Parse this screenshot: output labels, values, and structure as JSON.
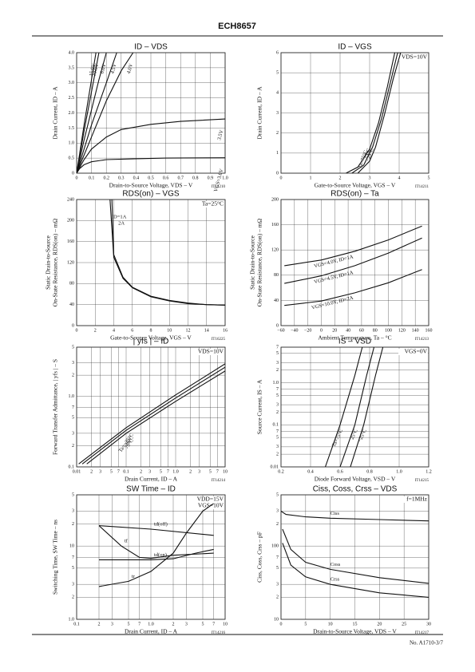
{
  "header": {
    "title": "ECH8657"
  },
  "footer": {
    "text": "No. A1710-3/7"
  },
  "chart_data": [
    {
      "type": "line",
      "title": "ID – VDS",
      "xlabel": "Drain-to-Source Voltage, VDS – V",
      "ylabel": [
        "Drain Current, ID – A"
      ],
      "note": "IT14210",
      "xlim": [
        0,
        1
      ],
      "xticks": [
        0,
        0.1,
        0.2,
        0.3,
        0.4,
        0.5,
        0.6,
        0.7,
        0.8,
        0.9,
        {
          "value": 1,
          "label": "1.0"
        }
      ],
      "ylim": [
        0,
        4
      ],
      "yticks": [
        0,
        0.5,
        {
          "value": 1,
          "label": "1.0"
        },
        1.5,
        {
          "value": 2,
          "label": "2.0"
        },
        2.5,
        {
          "value": 3,
          "label": "3.0"
        },
        3.5,
        {
          "value": 4,
          "label": "4.0"
        }
      ],
      "grid": true,
      "conditions": [],
      "series": [
        {
          "name": "15.0V",
          "color": "#111",
          "x": [
            0,
            0.05,
            0.1,
            0.13
          ],
          "values": [
            0,
            1.6,
            3.1,
            4.0
          ]
        },
        {
          "name": "10.0V",
          "color": "#111",
          "x": [
            0,
            0.05,
            0.1,
            0.15
          ],
          "values": [
            0,
            1.4,
            2.7,
            4.0
          ]
        },
        {
          "name": "6.0V",
          "color": "#111",
          "x": [
            0,
            0.05,
            0.1,
            0.15,
            0.2
          ],
          "values": [
            0,
            1.1,
            2.1,
            3.1,
            4.0
          ]
        },
        {
          "name": "4.5V",
          "color": "#111",
          "x": [
            0,
            0.05,
            0.1,
            0.15,
            0.2,
            0.27
          ],
          "values": [
            0,
            0.8,
            1.6,
            2.3,
            3.0,
            4.0
          ]
        },
        {
          "name": "4.0V",
          "color": "#111",
          "x": [
            0,
            0.1,
            0.2,
            0.3,
            0.38
          ],
          "values": [
            0,
            1.2,
            2.4,
            3.4,
            4.0
          ]
        },
        {
          "name": "3.5V",
          "color": "#111",
          "x": [
            0,
            0.05,
            0.1,
            0.2,
            0.3,
            0.5,
            0.7,
            1.0
          ],
          "values": [
            0,
            0.45,
            0.8,
            1.2,
            1.45,
            1.62,
            1.72,
            1.8
          ]
        },
        {
          "name": "VGS=3.0V",
          "color": "#111",
          "x": [
            0,
            0.02,
            0.05,
            0.1,
            0.2,
            0.4,
            0.6,
            1.0
          ],
          "values": [
            0,
            0.15,
            0.28,
            0.38,
            0.45,
            0.48,
            0.5,
            0.51
          ]
        }
      ]
    },
    {
      "type": "line",
      "title": "ID – VGS",
      "xlabel": "Gate-to-Source Voltage, VGS – V",
      "ylabel": [
        "Drain Current, ID – A"
      ],
      "note": "IT14211",
      "xlim": [
        0,
        5
      ],
      "xticks": [
        0,
        1,
        2,
        3,
        4,
        5
      ],
      "ylim": [
        0,
        6
      ],
      "yticks": [
        0,
        1,
        2,
        3,
        4,
        5,
        6
      ],
      "grid": true,
      "conditions": [
        "VDS=10V"
      ],
      "series": [
        {
          "name": "Ta=75°C",
          "color": "#111",
          "x": [
            2.2,
            2.6,
            3.0,
            3.3,
            3.6,
            3.85
          ],
          "values": [
            0,
            0.3,
            1.2,
            2.5,
            4.3,
            6
          ]
        },
        {
          "name": "25°C",
          "color": "#111",
          "x": [
            2.4,
            2.8,
            3.1,
            3.4,
            3.7,
            3.95
          ],
          "values": [
            0,
            0.4,
            1.3,
            2.7,
            4.5,
            6
          ]
        },
        {
          "name": "−25°C",
          "color": "#111",
          "x": [
            2.6,
            3.0,
            3.2,
            3.5,
            3.8,
            4.05
          ],
          "values": [
            0,
            0.6,
            1.3,
            2.9,
            4.7,
            6
          ]
        }
      ]
    },
    {
      "type": "line",
      "title": "RDS(on) – VGS",
      "xlabel": "Gate-to-Source Voltage, VGS – V",
      "ylabel": [
        "Static Drain-to-Source",
        "On-State Resistance, RDS(on) – mΩ"
      ],
      "note": "IT16225",
      "xlim": [
        0,
        16
      ],
      "xticks": [
        0,
        2,
        4,
        6,
        8,
        10,
        12,
        14,
        16
      ],
      "ylim": [
        0,
        240
      ],
      "yticks": [
        0,
        40,
        80,
        120,
        160,
        200,
        240
      ],
      "grid": true,
      "conditions": [
        "Ta=25°C"
      ],
      "series": [
        {
          "name": "ID=1A",
          "color": "#111",
          "x": [
            3.6,
            4,
            5,
            6,
            8,
            10,
            12,
            14,
            16
          ],
          "values": [
            240,
            130,
            90,
            72,
            55,
            47,
            42,
            40,
            39
          ]
        },
        {
          "name": "2A",
          "color": "#111",
          "x": [
            3.8,
            4,
            5,
            6,
            8,
            10,
            12,
            14,
            16
          ],
          "values": [
            240,
            135,
            92,
            73,
            56,
            48,
            43,
            40,
            39
          ]
        }
      ]
    },
    {
      "type": "line",
      "title": "RDS(on) – Ta",
      "xlabel": "Ambient Temperature, Ta – °C",
      "ylabel": [
        "Static Drain-to-Source",
        "On-State Resistance, RDS(on) – mΩ"
      ],
      "note": "IT14213",
      "xlim": [
        -60,
        160
      ],
      "xticks": [
        {
          "value": -60,
          "label": "−60"
        },
        {
          "value": -40,
          "label": "−40"
        },
        {
          "value": -20,
          "label": "−20"
        },
        0,
        20,
        40,
        60,
        80,
        100,
        120,
        140,
        160
      ],
      "ylim": [
        0,
        200
      ],
      "yticks": [
        0,
        40,
        80,
        120,
        160,
        200
      ],
      "grid": true,
      "conditions": [],
      "series": [
        {
          "name": "VGS=4.0V, ID=1A",
          "color": "#111",
          "x": [
            -55,
            0,
            50,
            100,
            150
          ],
          "values": [
            95,
            104,
            118,
            136,
            158
          ]
        },
        {
          "name": "VGS=4.5V, ID=1A",
          "color": "#111",
          "x": [
            -55,
            0,
            50,
            100,
            150
          ],
          "values": [
            67,
            79,
            95,
            115,
            139
          ]
        },
        {
          "name": "VGS=10.0V, ID=2A",
          "color": "#111",
          "x": [
            -55,
            0,
            50,
            100,
            150
          ],
          "values": [
            32,
            39,
            52,
            68,
            89
          ]
        }
      ]
    },
    {
      "type": "line",
      "title": "| yfs | – ID",
      "xlabel": "Drain Current, ID – A",
      "ylabel": [
        "Forward Transfer Admittance, | yfs | – S"
      ],
      "note": "IT14214",
      "xlog": true,
      "ylog": true,
      "xlim": [
        0.01,
        10
      ],
      "xticks": [
        0.01,
        {
          "value": 0.02,
          "label": "2"
        },
        {
          "value": 0.03,
          "label": "3"
        },
        {
          "value": 0.05,
          "label": "5"
        },
        {
          "value": 0.07,
          "label": "7"
        },
        0.1,
        {
          "value": 0.2,
          "label": "2"
        },
        {
          "value": 0.3,
          "label": "3"
        },
        {
          "value": 0.5,
          "label": "5"
        },
        {
          "value": 0.7,
          "label": "7"
        },
        {
          "value": 1,
          "label": "1.0"
        },
        2,
        3,
        5,
        7,
        10
      ],
      "ylim": [
        0.1,
        5
      ],
      "yticks": [
        0.1,
        {
          "value": 0.2,
          "label": "2"
        },
        {
          "value": 0.3,
          "label": "3"
        },
        {
          "value": 0.5,
          "label": "5"
        },
        {
          "value": 0.7,
          "label": "7"
        },
        {
          "value": 1,
          "label": "1.0"
        },
        2,
        3,
        5
      ],
      "grid": true,
      "conditions": [
        "VDS=10V"
      ],
      "series": [
        {
          "name": "Ta=−25°C",
          "color": "#111",
          "x": [
            0.011,
            0.1,
            1,
            10
          ],
          "values": [
            0.11,
            0.36,
            1.05,
            2.9
          ]
        },
        {
          "name": "25°C",
          "color": "#111",
          "x": [
            0.013,
            0.1,
            1,
            10
          ],
          "values": [
            0.11,
            0.33,
            0.95,
            2.6
          ]
        },
        {
          "name": "75°C",
          "color": "#111",
          "x": [
            0.016,
            0.1,
            1,
            10
          ],
          "values": [
            0.11,
            0.3,
            0.85,
            2.3
          ]
        }
      ]
    },
    {
      "type": "line",
      "title": "IS – VSD",
      "xlabel": "Diode Forward Voltage, VSD – V",
      "ylabel": [
        "Source Current, IS – A"
      ],
      "note": "IT14215",
      "ylog": true,
      "xlim": [
        0.2,
        1.2
      ],
      "xticks": [
        0.2,
        0.4,
        0.6,
        0.8,
        {
          "value": 1,
          "label": "1.0"
        },
        1.2
      ],
      "ylim": [
        0.01,
        7
      ],
      "yticks": [
        0.01,
        {
          "value": 0.02,
          "label": "2"
        },
        {
          "value": 0.03,
          "label": "3"
        },
        {
          "value": 0.05,
          "label": "5"
        },
        {
          "value": 0.07,
          "label": "7"
        },
        0.1,
        {
          "value": 0.2,
          "label": "2"
        },
        {
          "value": 0.3,
          "label": "3"
        },
        {
          "value": 0.5,
          "label": "5"
        },
        {
          "value": 0.7,
          "label": "7"
        },
        {
          "value": 1,
          "label": "1.0"
        },
        2,
        3,
        5,
        7
      ],
      "grid": true,
      "conditions": [
        "VGS=0V"
      ],
      "series": [
        {
          "name": "Ta=75°C",
          "color": "#111",
          "x": [
            0.5,
            0.6,
            0.7,
            0.75
          ],
          "values": [
            0.01,
            0.1,
            1.5,
            7
          ]
        },
        {
          "name": "25°C",
          "color": "#111",
          "x": [
            0.6,
            0.7,
            0.78,
            0.83
          ],
          "values": [
            0.01,
            0.1,
            1.5,
            7
          ]
        },
        {
          "name": "−25°C",
          "color": "#111",
          "x": [
            0.67,
            0.76,
            0.84,
            0.89
          ],
          "values": [
            0.01,
            0.1,
            1.5,
            7
          ]
        }
      ]
    },
    {
      "type": "line",
      "title": "SW Time – ID",
      "xlabel": "Drain Current, ID – A",
      "ylabel": [
        "Switching Time, SW Time – ns"
      ],
      "note": "IT14216",
      "xlog": true,
      "ylog": true,
      "xlim": [
        0.1,
        10
      ],
      "xticks": [
        0.1,
        {
          "value": 0.2,
          "label": "2"
        },
        {
          "value": 0.3,
          "label": "3"
        },
        {
          "value": 0.5,
          "label": "5"
        },
        {
          "value": 0.7,
          "label": "7"
        },
        {
          "value": 1,
          "label": "1.0"
        },
        2,
        3,
        5,
        7,
        10
      ],
      "ylim": [
        1,
        50
      ],
      "yticks": [
        {
          "value": 1,
          "label": "1.0"
        },
        2,
        3,
        5,
        7,
        10,
        {
          "value": 20,
          "label": "2"
        },
        {
          "value": 30,
          "label": "3"
        },
        {
          "value": 50,
          "label": "5"
        }
      ],
      "grid": true,
      "conditions": [
        "VDD=15V",
        "VGS=10V"
      ],
      "series": [
        {
          "name": "td(off)",
          "color": "#111",
          "x": [
            0.2,
            1,
            7
          ],
          "values": [
            19,
            17,
            14
          ]
        },
        {
          "name": "tf",
          "color": "#111",
          "x": [
            0.2,
            0.4,
            0.7,
            1,
            2,
            7
          ],
          "values": [
            19,
            10,
            7,
            6.8,
            7.5,
            8
          ]
        },
        {
          "name": "td(on)",
          "color": "#111",
          "x": [
            0.2,
            1,
            2,
            4,
            7
          ],
          "values": [
            6.5,
            6.5,
            6.7,
            8,
            9
          ]
        },
        {
          "name": "tr",
          "color": "#111",
          "x": [
            0.2,
            0.5,
            1,
            2,
            3,
            5,
            7
          ],
          "values": [
            2.8,
            3.3,
            4.5,
            8,
            15,
            30,
            38
          ]
        }
      ]
    },
    {
      "type": "line",
      "title": "Ciss, Coss, Crss – VDS",
      "xlabel": "Drain-to-Source Voltage, VDS – V",
      "ylabel": [
        "Ciss, Coss, Crss – pF"
      ],
      "note": "IT14217",
      "ylog": true,
      "xlim": [
        0,
        30
      ],
      "xticks": [
        0,
        5,
        10,
        15,
        20,
        25,
        30
      ],
      "ylim": [
        10,
        500
      ],
      "yticks": [
        10,
        {
          "value": 20,
          "label": "2"
        },
        {
          "value": 30,
          "label": "3"
        },
        {
          "value": 50,
          "label": "5"
        },
        {
          "value": 70,
          "label": "7"
        },
        100,
        {
          "value": 200,
          "label": "2"
        },
        {
          "value": 300,
          "label": "3"
        },
        {
          "value": 500,
          "label": "5"
        }
      ],
      "grid": true,
      "conditions": [
        "f=1MHz"
      ],
      "series": [
        {
          "name": "Ciss",
          "color": "#111",
          "x": [
            0,
            1,
            5,
            10,
            20,
            30
          ],
          "values": [
            300,
            270,
            250,
            240,
            230,
            220
          ]
        },
        {
          "name": "Coss",
          "color": "#111",
          "x": [
            0.3,
            2,
            5,
            10,
            20,
            30
          ],
          "values": [
            170,
            90,
            60,
            48,
            37,
            31
          ]
        },
        {
          "name": "Crss",
          "color": "#111",
          "x": [
            0.3,
            2,
            5,
            10,
            20,
            30
          ],
          "values": [
            110,
            55,
            38,
            30,
            23,
            20
          ]
        }
      ]
    }
  ]
}
